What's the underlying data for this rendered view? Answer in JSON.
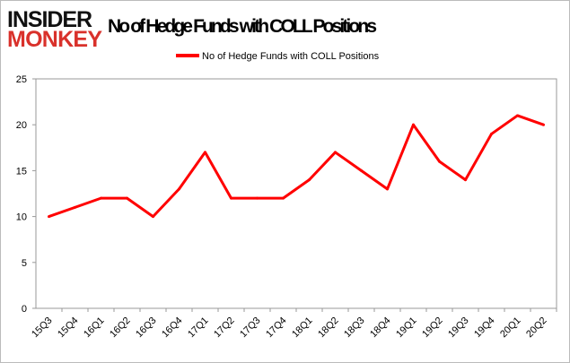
{
  "logo": {
    "line1": "INSIDER",
    "line2": "MONKEY"
  },
  "chart_data": {
    "type": "line",
    "title": "No of Hedge Funds with COLL Positions",
    "xlabel": "",
    "ylabel": "",
    "legend": {
      "position": "top-center",
      "entries": [
        "No of Hedge Funds with COLL Positions"
      ]
    },
    "categories": [
      "15Q3",
      "15Q4",
      "16Q1",
      "16Q2",
      "16Q3",
      "16Q4",
      "17Q1",
      "17Q2",
      "17Q3",
      "17Q4",
      "18Q1",
      "18Q2",
      "18Q3",
      "18Q4",
      "19Q1",
      "19Q2",
      "19Q3",
      "19Q4",
      "20Q1",
      "20Q2"
    ],
    "series": [
      {
        "name": "No of Hedge Funds with COLL Positions",
        "color": "#ff0000",
        "values": [
          10,
          11,
          12,
          12,
          10,
          13,
          17,
          12,
          12,
          12,
          14,
          17,
          15,
          13,
          20,
          16,
          14,
          19,
          21,
          20
        ]
      }
    ],
    "ylim": [
      0,
      25
    ],
    "yticks": [
      0,
      5,
      10,
      15,
      20,
      25
    ],
    "grid": false
  },
  "colors": {
    "logo_dark": "#111111",
    "logo_red": "#d9312b"
  }
}
